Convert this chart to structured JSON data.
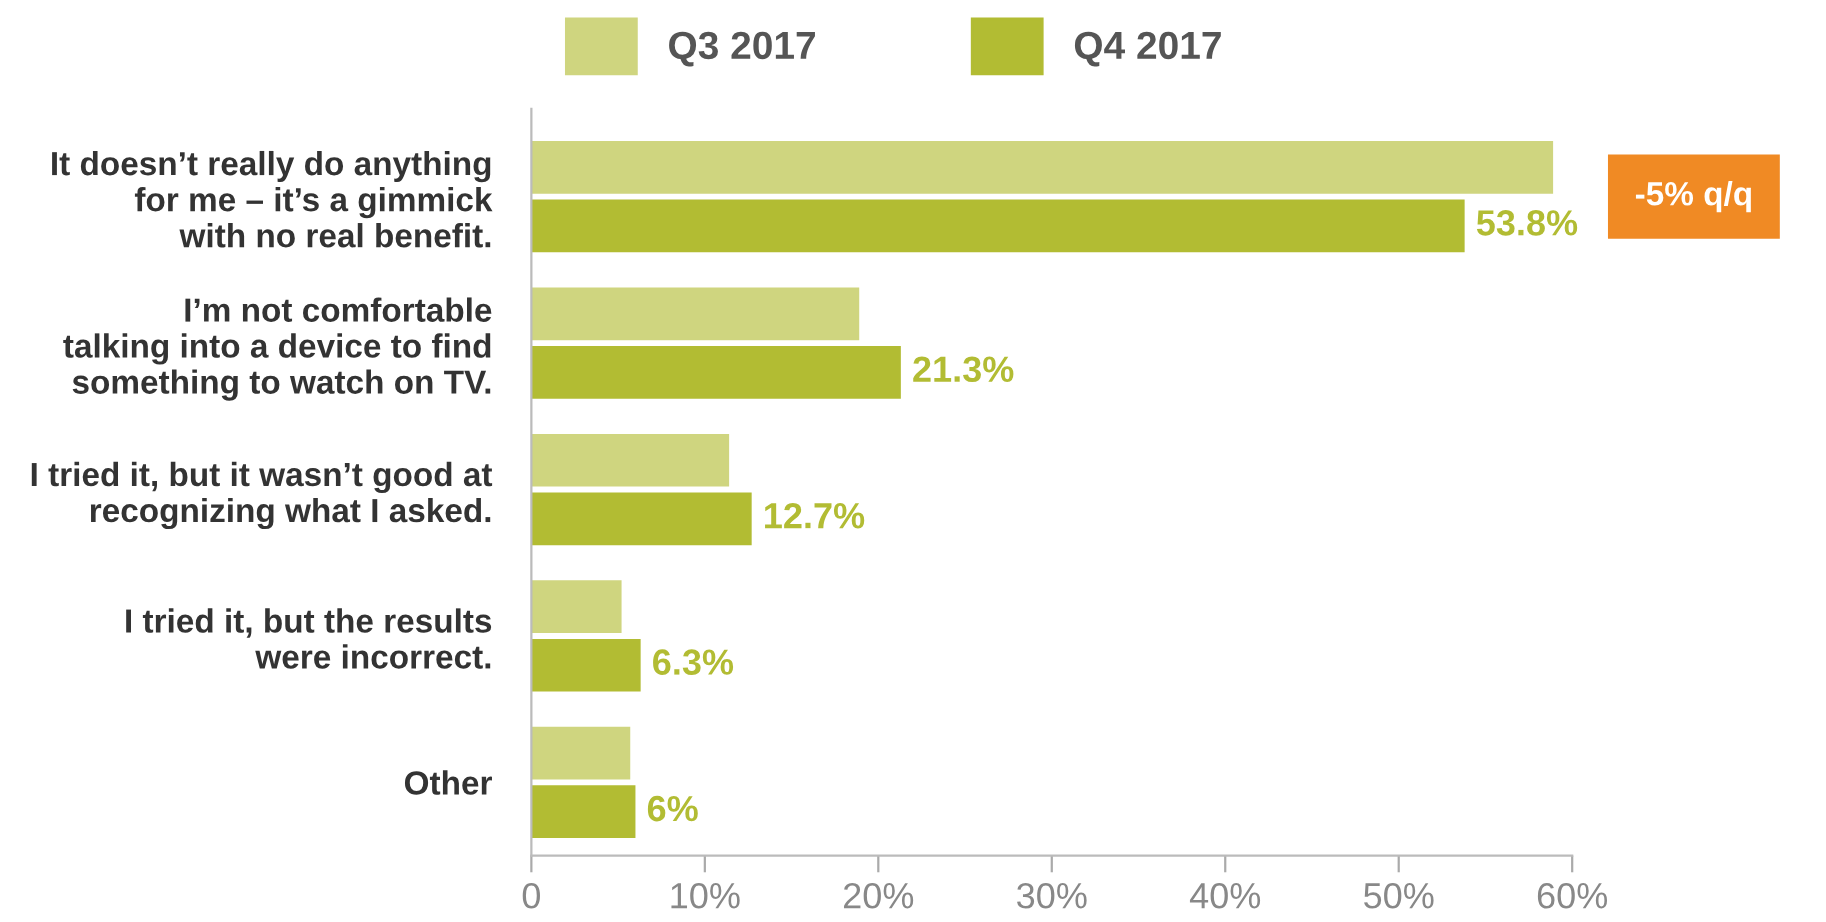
{
  "chart_data": {
    "type": "bar",
    "orientation": "horizontal",
    "categories": [
      "It doesn’t really do anything\nfor me – it’s a gimmick\nwith no real benefit.",
      "I’m not comfortable\ntalking into a device to find\nsomething to watch on TV.",
      "I tried it, but it wasn’t good at\nrecognizing what I asked.",
      "I tried it, but the results\nwere incorrect.",
      "Other"
    ],
    "series": [
      {
        "name": "Q3 2017",
        "color": "#cfd57f",
        "values": [
          58.9,
          18.9,
          11.4,
          5.2,
          5.7
        ]
      },
      {
        "name": "Q4 2017",
        "color": "#b2bc33",
        "values": [
          53.8,
          21.3,
          12.7,
          6.3,
          6
        ],
        "value_labels": [
          "53.8%",
          "21.3%",
          "12.7%",
          "6.3%",
          "6%"
        ]
      }
    ],
    "xlim": [
      0,
      60
    ],
    "xticks": [
      {
        "value": 0,
        "label": "0"
      },
      {
        "value": 10,
        "label": "10%"
      },
      {
        "value": 20,
        "label": "20%"
      },
      {
        "value": 30,
        "label": "30%"
      },
      {
        "value": 40,
        "label": "40%"
      },
      {
        "value": 50,
        "label": "50%"
      },
      {
        "value": 60,
        "label": "60%"
      }
    ],
    "annotations": [
      "-5% q/q"
    ],
    "legend": "top",
    "grid": false
  }
}
